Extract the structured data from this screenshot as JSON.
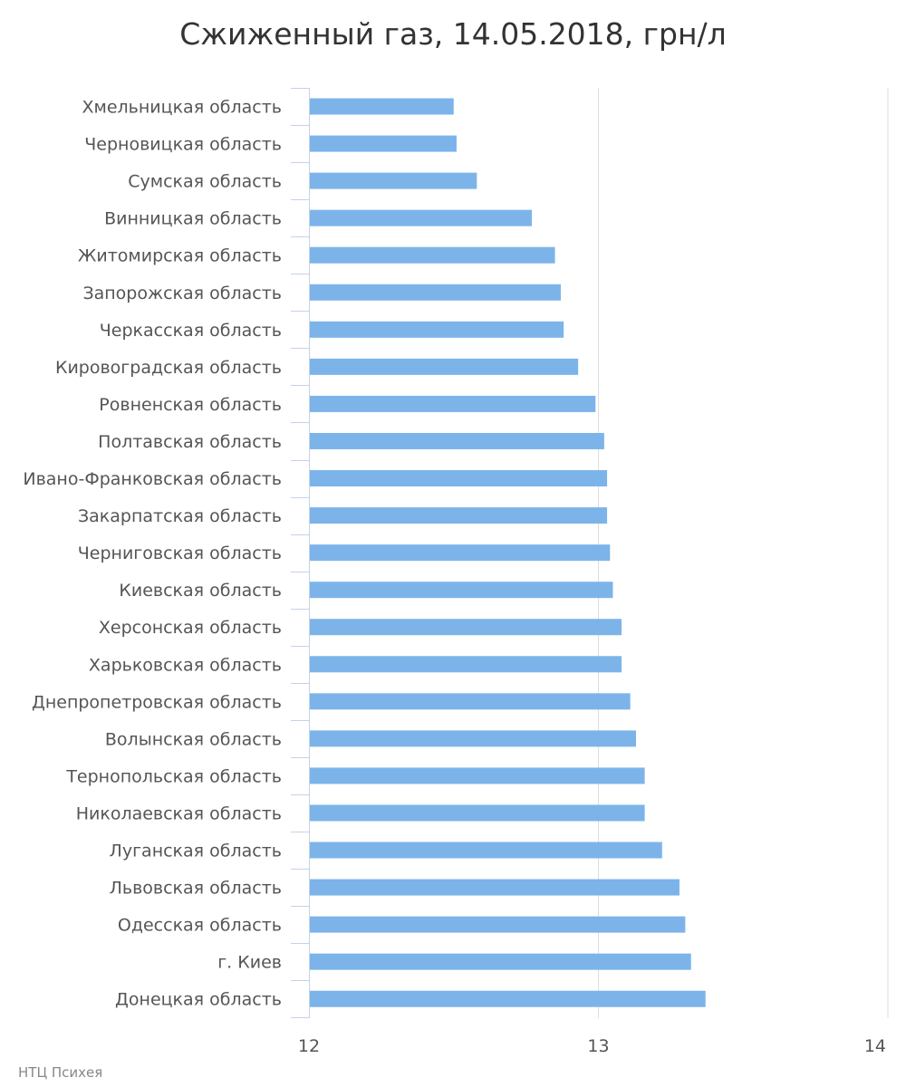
{
  "credit": "НТЦ Психея",
  "colors": {
    "bar": "#7cb4ea",
    "grid": "#dddddd",
    "axis": "#c5d2e6",
    "text": "#555555",
    "title": "#333333"
  },
  "chart_data": {
    "type": "bar",
    "orientation": "horizontal",
    "title": "Сжиженный газ, 14.05.2018, грн/л",
    "xlabel": "",
    "ylabel": "",
    "xlim": [
      12,
      14
    ],
    "ticks": [
      "12",
      "13",
      "14"
    ],
    "grid": true,
    "legend": "none",
    "categories": [
      "Хмельницкая область",
      "Черновицкая область",
      "Сумская область",
      "Винницкая область",
      "Житомирская область",
      "Запорожская область",
      "Черкасская область",
      "Кировоградская область",
      "Ровненская область",
      "Полтавская область",
      "Ивано-Франковская область",
      "Закарпатская область",
      "Черниговская область",
      "Киевская область",
      "Херсонская область",
      "Харьковская область",
      "Днепропетровская область",
      "Волынская область",
      "Тернопольская область",
      "Николаевская область",
      "Луганская область",
      "Львовская область",
      "Одесская область",
      "г. Киев",
      "Донецкая область"
    ],
    "values": [
      12.5,
      12.51,
      12.58,
      12.77,
      12.85,
      12.87,
      12.88,
      12.93,
      12.99,
      13.02,
      13.03,
      13.03,
      13.04,
      13.05,
      13.08,
      13.08,
      13.11,
      13.13,
      13.16,
      13.16,
      13.22,
      13.28,
      13.3,
      13.32,
      13.37
    ]
  }
}
